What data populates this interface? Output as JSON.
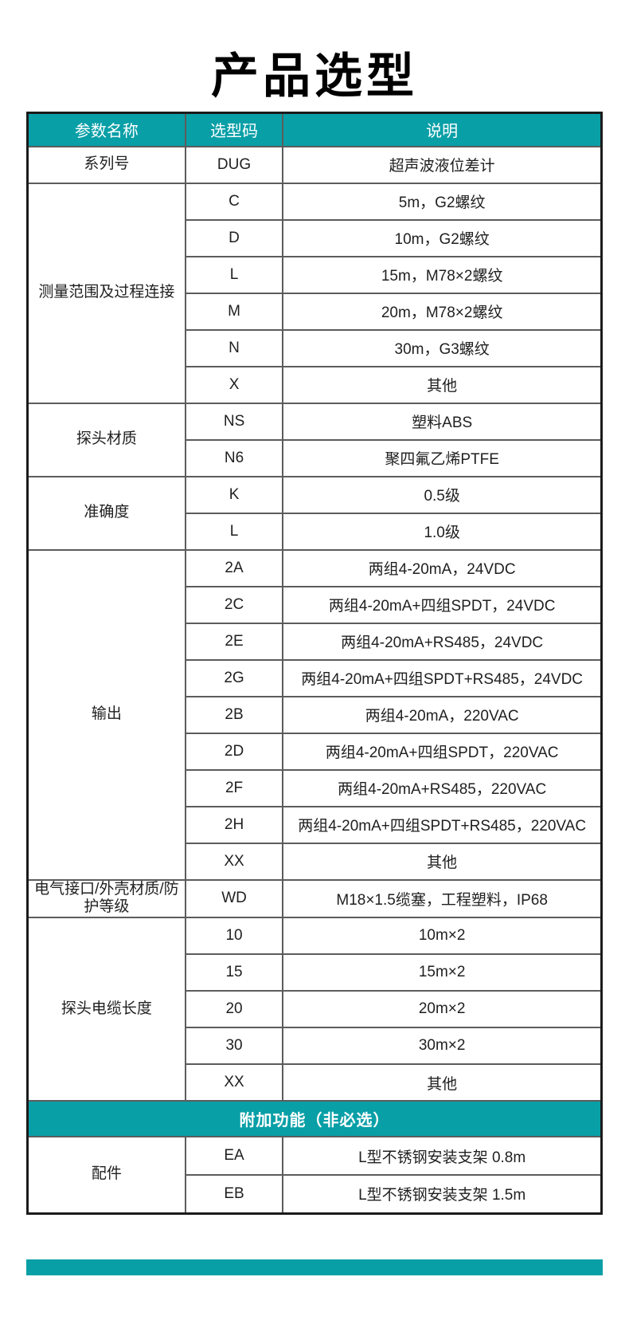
{
  "title": "产品选型",
  "colors": {
    "accent_teal": "#099fa7",
    "outer_border": "#1b1b1b",
    "inner_border": "#5c5c5c",
    "text": "#1f1f1f"
  },
  "table": {
    "columns": [
      "参数名称",
      "选型码",
      "说明"
    ],
    "groups": [
      {
        "param": "系列号",
        "rows": [
          {
            "code": "DUG",
            "desc": "超声波液位差计"
          }
        ]
      },
      {
        "param": "测量范围及过程连接",
        "rows": [
          {
            "code": "C",
            "desc": "5m，G2螺纹"
          },
          {
            "code": "D",
            "desc": "10m，G2螺纹"
          },
          {
            "code": "L",
            "desc": "15m，M78×2螺纹"
          },
          {
            "code": "M",
            "desc": "20m，M78×2螺纹"
          },
          {
            "code": "N",
            "desc": "30m，G3螺纹"
          },
          {
            "code": "X",
            "desc": "其他"
          }
        ]
      },
      {
        "param": "探头材质",
        "rows": [
          {
            "code": "NS",
            "desc": "塑料ABS"
          },
          {
            "code": "N6",
            "desc": "聚四氟乙烯PTFE"
          }
        ]
      },
      {
        "param": "准确度",
        "rows": [
          {
            "code": "K",
            "desc": "0.5级"
          },
          {
            "code": "L",
            "desc": "1.0级"
          }
        ]
      },
      {
        "param": "输出",
        "rows": [
          {
            "code": "2A",
            "desc": "两组4-20mA，24VDC"
          },
          {
            "code": "2C",
            "desc": "两组4-20mA+四组SPDT，24VDC"
          },
          {
            "code": "2E",
            "desc": "两组4-20mA+RS485，24VDC"
          },
          {
            "code": "2G",
            "desc": "两组4-20mA+四组SPDT+RS485，24VDC"
          },
          {
            "code": "2B",
            "desc": "两组4-20mA，220VAC"
          },
          {
            "code": "2D",
            "desc": "两组4-20mA+四组SPDT，220VAC"
          },
          {
            "code": "2F",
            "desc": "两组4-20mA+RS485，220VAC"
          },
          {
            "code": "2H",
            "desc": "两组4-20mA+四组SPDT+RS485，220VAC"
          },
          {
            "code": "XX",
            "desc": "其他"
          }
        ]
      },
      {
        "param": "电气接口/外壳材质/防护等级",
        "rows": [
          {
            "code": "WD",
            "desc": "M18×1.5缆塞，工程塑料，IP68"
          }
        ]
      },
      {
        "param": "探头电缆长度",
        "rows": [
          {
            "code": "10",
            "desc": "10m×2"
          },
          {
            "code": "15",
            "desc": "15m×2"
          },
          {
            "code": "20",
            "desc": "20m×2"
          },
          {
            "code": "30",
            "desc": "30m×2"
          },
          {
            "code": "XX",
            "desc": "其他"
          }
        ]
      }
    ],
    "band_label": "附加功能（非必选）",
    "extra_groups": [
      {
        "param": "配件",
        "rows": [
          {
            "code": "EA",
            "desc": "L型不锈钢安装支架 0.8m"
          },
          {
            "code": "EB",
            "desc": "L型不锈钢安装支架 1.5m"
          }
        ]
      }
    ]
  }
}
